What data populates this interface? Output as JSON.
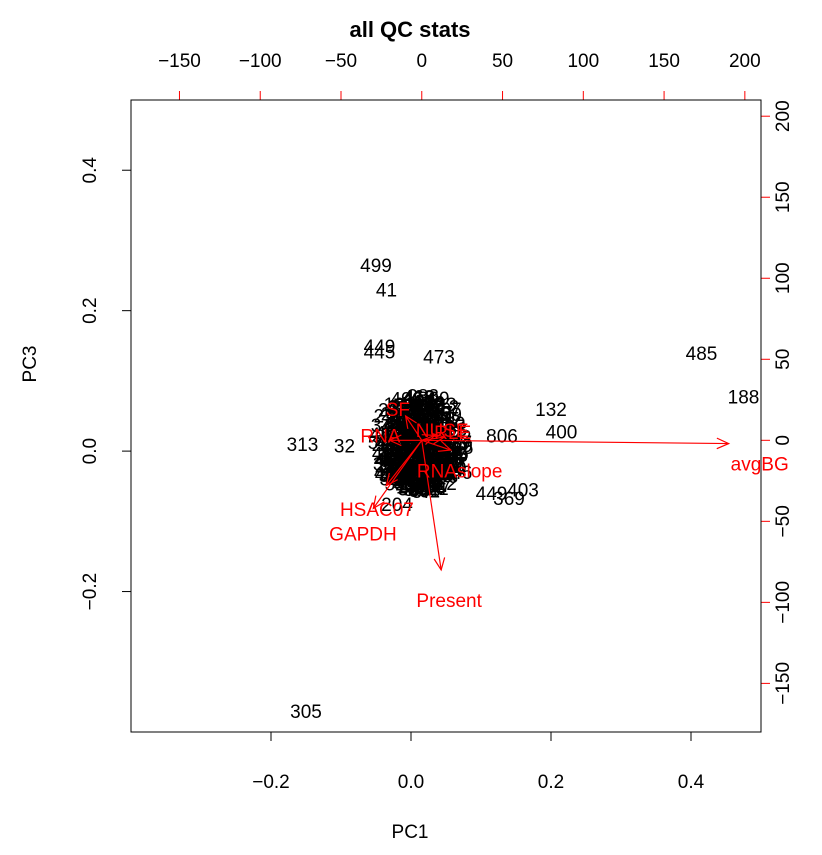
{
  "chart_data": {
    "type": "scatter",
    "subtype": "biplot",
    "title": "all QC stats",
    "xlabel": "PC1",
    "ylabel": "PC3",
    "xlim": [
      -0.4,
      0.5
    ],
    "ylim": [
      -0.4,
      0.5
    ],
    "x_ticks": [
      -0.2,
      0.0,
      0.2,
      0.4
    ],
    "x_tick_labels": [
      "−0.2",
      "0.0",
      "0.2",
      "0.4"
    ],
    "y_ticks": [
      -0.2,
      0.0,
      0.2,
      0.4
    ],
    "y_tick_labels": [
      "−0.2",
      "0.0",
      "0.2",
      "0.4"
    ],
    "loadings_axis_lim": [
      -180,
      210
    ],
    "top_ticks": [
      -150,
      -100,
      -50,
      0,
      50,
      100,
      150,
      200
    ],
    "top_tick_labels": [
      "−150",
      "−100",
      "−50",
      "0",
      "50",
      "100",
      "150",
      "200"
    ],
    "right_ticks": [
      -150,
      -100,
      -50,
      0,
      50,
      100,
      150,
      200
    ],
    "right_tick_labels": [
      "−150",
      "−100",
      "−50",
      "0",
      "50",
      "100",
      "150",
      "200"
    ],
    "sample_color": "#000000",
    "loading_color": "#ff0000",
    "core_cloud_labels": [
      "3",
      "11",
      "27",
      "58",
      "90",
      "121",
      "156",
      "207",
      "244",
      "260",
      "277",
      "290",
      "312",
      "339",
      "350",
      "361",
      "378",
      "392",
      "415",
      "427",
      "433",
      "456",
      "461",
      "477",
      "488",
      "507",
      "521",
      "533",
      "56",
      "78",
      "95",
      "143",
      "167",
      "199",
      "218",
      "229",
      "251",
      "283",
      "299",
      "344",
      "366",
      "389",
      "418",
      "440",
      "452",
      "468",
      "491",
      "512",
      "24",
      "37",
      "66",
      "102",
      "117",
      "135",
      "178",
      "211",
      "236",
      "269",
      "301",
      "327",
      "356",
      "372",
      "399",
      "411",
      "424",
      "447",
      "463",
      "496",
      "516",
      "7",
      "15",
      "48",
      "84",
      "109",
      "129",
      "162",
      "184",
      "226",
      "248",
      "272",
      "308",
      "330",
      "347",
      "386",
      "405",
      "429",
      "471",
      "480",
      "503",
      "525"
    ],
    "labeled_points": [
      {
        "label": "499",
        "x": -0.05,
        "y": 0.265
      },
      {
        "label": "41",
        "x": -0.035,
        "y": 0.23
      },
      {
        "label": "449",
        "x": -0.045,
        "y": 0.15
      },
      {
        "label": "445",
        "x": -0.045,
        "y": 0.142
      },
      {
        "label": "473",
        "x": 0.04,
        "y": 0.135
      },
      {
        "label": "485",
        "x": 0.415,
        "y": 0.14
      },
      {
        "label": "188",
        "x": 0.475,
        "y": 0.078
      },
      {
        "label": "132",
        "x": 0.2,
        "y": 0.06
      },
      {
        "label": "400",
        "x": 0.215,
        "y": 0.028
      },
      {
        "label": "806",
        "x": 0.13,
        "y": 0.022
      },
      {
        "label": "313",
        "x": -0.155,
        "y": 0.01
      },
      {
        "label": "32",
        "x": -0.095,
        "y": 0.008
      },
      {
        "label": "246",
        "x": 0.065,
        "y": -0.03
      },
      {
        "label": "403",
        "x": 0.16,
        "y": -0.055
      },
      {
        "label": "449",
        "x": 0.115,
        "y": -0.06
      },
      {
        "label": "369",
        "x": 0.14,
        "y": -0.067
      },
      {
        "label": "204",
        "x": -0.02,
        "y": -0.075
      },
      {
        "label": "305",
        "x": -0.15,
        "y": -0.37
      }
    ],
    "loadings": [
      {
        "name": "avgBG",
        "display": "avgBG",
        "x": 190,
        "y": -2
      },
      {
        "name": "Present",
        "display": "Present",
        "x": 12,
        "y": -80
      },
      {
        "name": "GAPDH",
        "display": "GAPDH",
        "x": -30,
        "y": -42
      },
      {
        "name": "HSAC07",
        "display": "HSAC07",
        "x": -22,
        "y": -28
      },
      {
        "name": "SF",
        "display": "SF",
        "x": -10,
        "y": 15
      },
      {
        "name": "RNAslope",
        "display": "RNAslope",
        "x": 18,
        "y": -6
      },
      {
        "name": "RNA",
        "display": "RNA",
        "x": -20,
        "y": 0
      },
      {
        "name": "NUSE",
        "display": "NUSE",
        "x": 8,
        "y": 3
      },
      {
        "name": "RLE",
        "display": "RLE",
        "x": 14,
        "y": 2
      }
    ]
  }
}
